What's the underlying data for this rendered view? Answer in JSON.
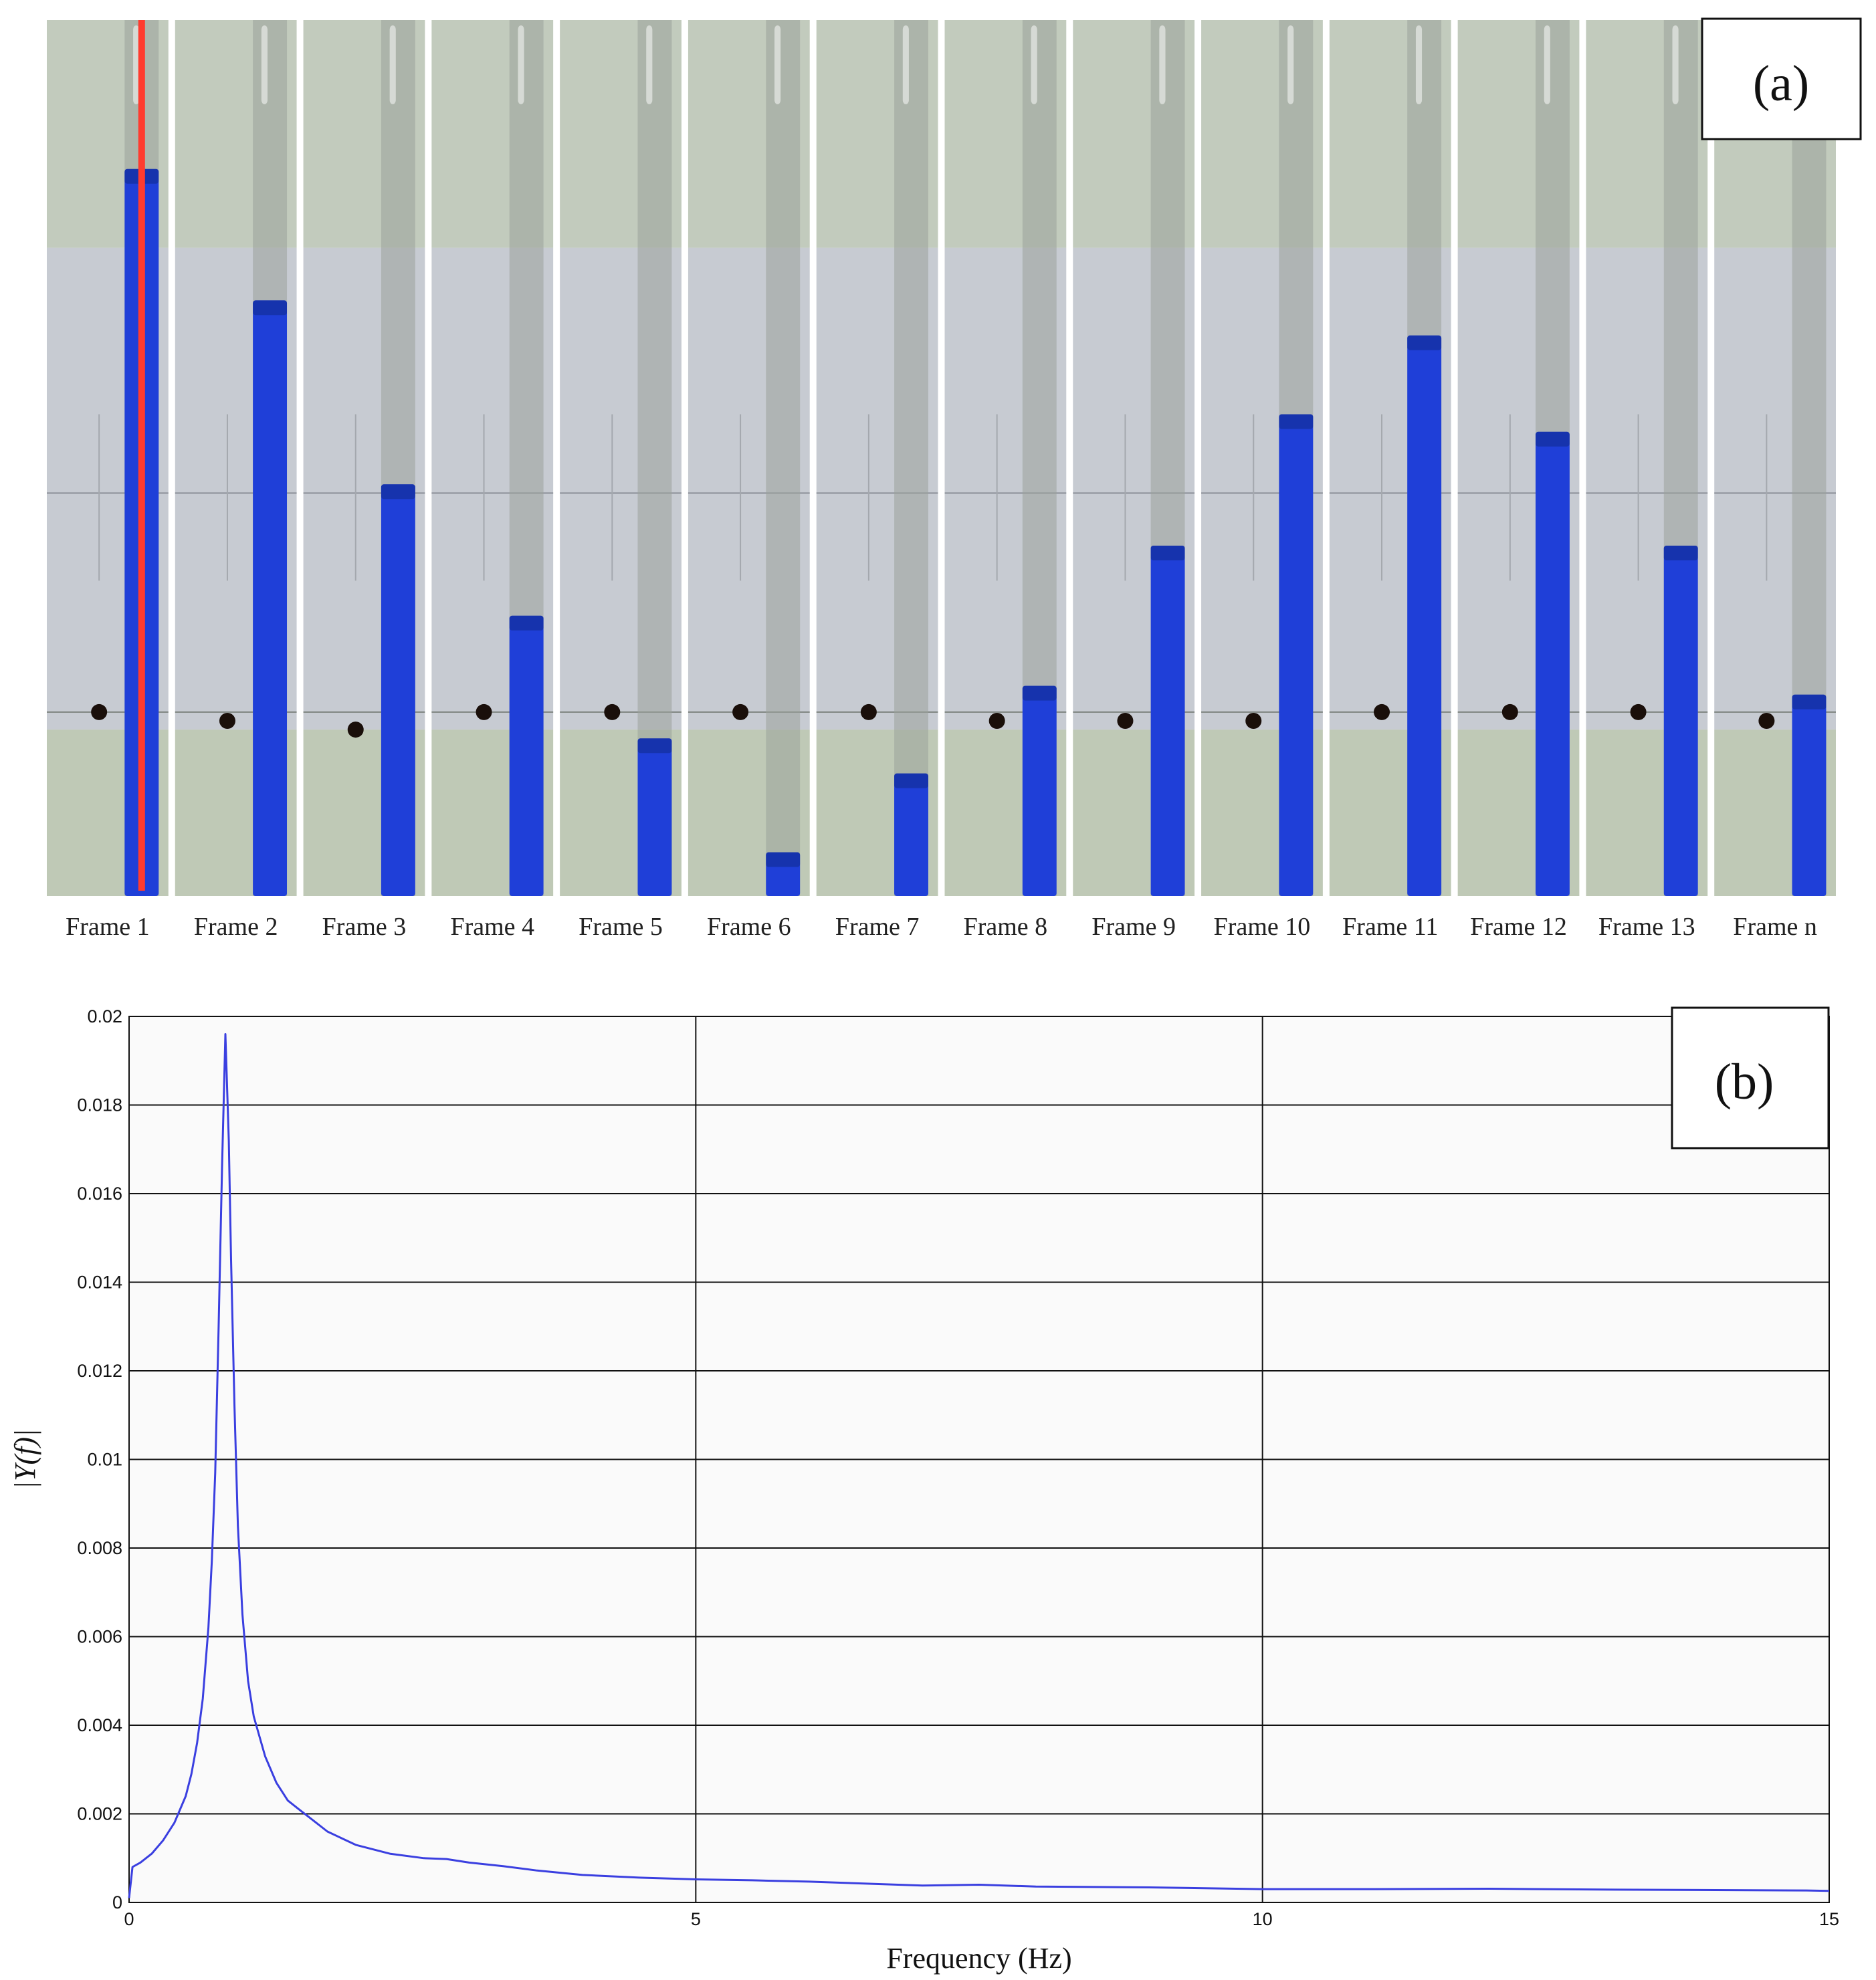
{
  "panel_a": {
    "tag": "(a)",
    "frames": [
      {
        "label": "Frame 1",
        "water_level": 0.83,
        "dot_level": 0.21
      },
      {
        "label": "Frame 2",
        "water_level": 0.68,
        "dot_level": 0.2
      },
      {
        "label": "Frame 3",
        "water_level": 0.47,
        "dot_level": 0.19
      },
      {
        "label": "Frame 4",
        "water_level": 0.32,
        "dot_level": 0.21
      },
      {
        "label": "Frame 5",
        "water_level": 0.18,
        "dot_level": 0.21
      },
      {
        "label": "Frame 6",
        "water_level": 0.05,
        "dot_level": 0.21
      },
      {
        "label": "Frame 7",
        "water_level": 0.14,
        "dot_level": 0.21
      },
      {
        "label": "Frame 8",
        "water_level": 0.24,
        "dot_level": 0.2
      },
      {
        "label": "Frame 9",
        "water_level": 0.4,
        "dot_level": 0.2
      },
      {
        "label": "Frame 10",
        "water_level": 0.55,
        "dot_level": 0.2
      },
      {
        "label": "Frame 11",
        "water_level": 0.64,
        "dot_level": 0.21
      },
      {
        "label": "Frame 12",
        "water_level": 0.53,
        "dot_level": 0.21
      },
      {
        "label": "Frame 13",
        "water_level": 0.4,
        "dot_level": 0.21
      },
      {
        "label": "Frame n",
        "water_level": 0.23,
        "dot_level": 0.2
      }
    ],
    "colors": {
      "water": "#1f3fd8",
      "guide_line": "#ff3b2f",
      "dot": "#1a0f0a",
      "wall_top": "#c2cbbd",
      "wall_mid": "#c7cbd2",
      "wall_bottom": "#bfc9b6",
      "tube": "#9aa39a"
    }
  },
  "chart_data": {
    "type": "line",
    "tag": "(b)",
    "xlabel": "Frequency (Hz)",
    "ylabel": "|Y(f)|",
    "xlim": [
      0,
      15
    ],
    "ylim": [
      0,
      0.02
    ],
    "xticks": [
      "0",
      "5",
      "10",
      "15"
    ],
    "yticks": [
      "0",
      "0.002",
      "0.004",
      "0.006",
      "0.008",
      "0.01",
      "0.012",
      "0.014",
      "0.016",
      "0.018",
      "0.02"
    ],
    "grid": true,
    "color": "#3a3fe0",
    "x": [
      0,
      0.03,
      0.1,
      0.2,
      0.3,
      0.4,
      0.5,
      0.55,
      0.6,
      0.65,
      0.7,
      0.73,
      0.76,
      0.79,
      0.82,
      0.85,
      0.88,
      0.9,
      0.93,
      0.96,
      1.0,
      1.05,
      1.1,
      1.2,
      1.3,
      1.4,
      1.5,
      1.6,
      1.75,
      2.0,
      2.3,
      2.6,
      2.8,
      3.0,
      3.3,
      3.6,
      4.0,
      4.5,
      5.0,
      5.5,
      6.0,
      7.0,
      7.5,
      8.0,
      9.0,
      10.0,
      11.0,
      12.0,
      13.0,
      14.0,
      14.8,
      15.0
    ],
    "y": [
      0.0001,
      0.0008,
      0.0009,
      0.0011,
      0.0014,
      0.0018,
      0.0024,
      0.0029,
      0.0036,
      0.0046,
      0.0062,
      0.0077,
      0.0097,
      0.013,
      0.0166,
      0.0196,
      0.0172,
      0.0145,
      0.0112,
      0.0085,
      0.0065,
      0.005,
      0.0042,
      0.0033,
      0.0027,
      0.0023,
      0.0021,
      0.0019,
      0.0016,
      0.0013,
      0.0011,
      0.001,
      0.00098,
      0.0009,
      0.00082,
      0.00072,
      0.00062,
      0.00056,
      0.00052,
      0.0005,
      0.00047,
      0.00038,
      0.0004,
      0.00036,
      0.00034,
      0.0003,
      0.0003,
      0.00031,
      0.00029,
      0.00028,
      0.00027,
      0.00026
    ]
  }
}
